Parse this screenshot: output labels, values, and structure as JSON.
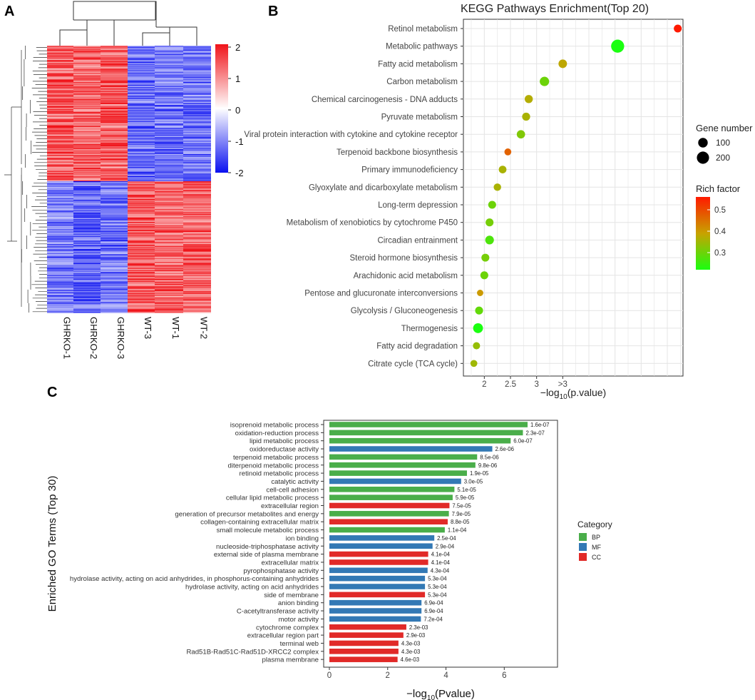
{
  "panel_labels": {
    "a": "A",
    "b": "B",
    "c": "C"
  },
  "chart_data": [
    {
      "type": "heatmap",
      "panel": "A",
      "title": "",
      "samples": [
        "GHRKO-1",
        "GHRKO-2",
        "GHRKO-3",
        "WT-3",
        "WT-1",
        "WT-2"
      ],
      "colorbar": {
        "min": -2,
        "max": 2,
        "ticks": [
          "2",
          "1",
          "0",
          "-1",
          "-2"
        ],
        "colors": [
          "#0a10f0",
          "#ffffff",
          "#f0141a"
        ]
      },
      "row_blocks": [
        {
          "rows": 160,
          "values": [
            1.0,
            0.9,
            1.0,
            -0.9,
            -0.8,
            -0.8
          ]
        },
        {
          "rows": 155,
          "values": [
            -0.8,
            -0.9,
            -0.8,
            1.0,
            0.9,
            0.9
          ]
        }
      ]
    },
    {
      "type": "scatter",
      "panel": "B",
      "title": "KEGG Pathways Enrichment(Top 20)",
      "xlabel": "−log10(p.value)",
      "xlabel_main": "−log",
      "xlabel_sub": "10",
      "xlabel_tail": "(p.value)",
      "xlim": [
        1.6,
        5.8
      ],
      "xticks": [
        {
          "value": 2,
          "label": "2"
        },
        {
          "value": 2.5,
          "label": "2.5"
        },
        {
          "value": 3,
          "label": "3"
        },
        {
          "value": 3.5,
          "label": ">3"
        }
      ],
      "size_legend": {
        "title": "Gene number",
        "entries": [
          {
            "value": 100,
            "label": "100"
          },
          {
            "value": 200,
            "label": "200"
          }
        ]
      },
      "color_legend": {
        "title": "Rich factor",
        "ticks": [
          "0.5",
          "0.4",
          "0.3"
        ],
        "range": [
          0.22,
          0.56
        ]
      },
      "points": [
        {
          "term": "Retinol metabolism",
          "x": 5.7,
          "genes": 55,
          "rich": 0.56
        },
        {
          "term": "Metabolic pathways",
          "x": 4.55,
          "genes": 240,
          "rich": 0.22
        },
        {
          "term": "Fatty acid metabolism",
          "x": 3.5,
          "genes": 70,
          "rich": 0.38
        },
        {
          "term": "Carbon metabolism",
          "x": 3.15,
          "genes": 95,
          "rich": 0.3
        },
        {
          "term": "Chemical carcinogenesis - DNA adducts",
          "x": 2.85,
          "genes": 60,
          "rich": 0.37
        },
        {
          "term": "Pyruvate metabolism",
          "x": 2.8,
          "genes": 58,
          "rich": 0.36
        },
        {
          "term": "Viral protein interaction with cytokine and cytokine receptor",
          "x": 2.7,
          "genes": 65,
          "rich": 0.32
        },
        {
          "term": "Terpenoid backbone biosynthesis",
          "x": 2.45,
          "genes": 35,
          "rich": 0.47
        },
        {
          "term": "Primary immunodeficiency",
          "x": 2.35,
          "genes": 50,
          "rich": 0.36
        },
        {
          "term": "Glyoxylate and dicarboxylate metabolism",
          "x": 2.25,
          "genes": 45,
          "rich": 0.36
        },
        {
          "term": "Long-term depression",
          "x": 2.15,
          "genes": 55,
          "rich": 0.3
        },
        {
          "term": "Metabolism of xenobiotics by cytochrome P450",
          "x": 2.1,
          "genes": 55,
          "rich": 0.31
        },
        {
          "term": "Circadian entrainment",
          "x": 2.1,
          "genes": 75,
          "rich": 0.27
        },
        {
          "term": "Steroid hormone biosynthesis",
          "x": 2.02,
          "genes": 55,
          "rich": 0.31
        },
        {
          "term": "Arachidonic acid metabolism",
          "x": 2.0,
          "genes": 55,
          "rich": 0.3
        },
        {
          "term": "Pentose and glucuronate interconversions",
          "x": 1.92,
          "genes": 25,
          "rich": 0.4
        },
        {
          "term": "Glycolysis / Gluconeogenesis",
          "x": 1.9,
          "genes": 55,
          "rich": 0.29
        },
        {
          "term": "Thermogenesis",
          "x": 1.88,
          "genes": 110,
          "rich": 0.22
        },
        {
          "term": "Fatty acid degradation",
          "x": 1.85,
          "genes": 40,
          "rich": 0.34
        },
        {
          "term": "Citrate cycle (TCA cycle)",
          "x": 1.8,
          "genes": 35,
          "rich": 0.35
        }
      ]
    },
    {
      "type": "bar",
      "panel": "C",
      "orientation": "horizontal",
      "xlabel": "−log10(Pvalue)",
      "xlabel_main": "−log",
      "xlabel_sub": "10",
      "xlabel_tail": "(Pvalue)",
      "ylabel": "Enriched GO Terms (Top 30)",
      "xlim": [
        0,
        7.9
      ],
      "xticks": [
        0,
        2,
        4,
        6
      ],
      "legend": {
        "title": "Category",
        "entries": [
          {
            "name": "BP",
            "color": "#4aae4a"
          },
          {
            "name": "MF",
            "color": "#3379b5"
          },
          {
            "name": "CC",
            "color": "#e12a28"
          }
        ]
      },
      "bars": [
        {
          "term": "isoprenoid metabolic process",
          "category": "BP",
          "value": 6.8,
          "label": "1.6e-07"
        },
        {
          "term": "oxidation-reduction process",
          "category": "BP",
          "value": 6.64,
          "label": "2.3e-07"
        },
        {
          "term": "lipid metabolic process",
          "category": "BP",
          "value": 6.22,
          "label": "6.0e-07"
        },
        {
          "term": "oxidoreductase activity",
          "category": "MF",
          "value": 5.59,
          "label": "2.6e-06"
        },
        {
          "term": "terpenoid metabolic process",
          "category": "BP",
          "value": 5.07,
          "label": "8.5e-06"
        },
        {
          "term": "diterpenoid metabolic process",
          "category": "BP",
          "value": 5.01,
          "label": "9.8e-06"
        },
        {
          "term": "retinoid metabolic process",
          "category": "BP",
          "value": 4.72,
          "label": "1.9e-05"
        },
        {
          "term": "catalytic activity",
          "category": "MF",
          "value": 4.52,
          "label": "3.0e-05"
        },
        {
          "term": "cell-cell adhesion",
          "category": "BP",
          "value": 4.29,
          "label": "5.1e-05"
        },
        {
          "term": "cellular lipid metabolic process",
          "category": "BP",
          "value": 4.23,
          "label": "5.9e-05"
        },
        {
          "term": "extracellular region",
          "category": "CC",
          "value": 4.12,
          "label": "7.5e-05"
        },
        {
          "term": "generation of precursor metabolites and energy",
          "category": "BP",
          "value": 4.1,
          "label": "7.9e-05"
        },
        {
          "term": "collagen-containing extracellular matrix",
          "category": "CC",
          "value": 4.06,
          "label": "8.8e-05"
        },
        {
          "term": "small molecule metabolic process",
          "category": "BP",
          "value": 3.96,
          "label": "1.1e-04"
        },
        {
          "term": "ion binding",
          "category": "MF",
          "value": 3.6,
          "label": "2.5e-04"
        },
        {
          "term": "nucleoside-triphosphatase activity",
          "category": "MF",
          "value": 3.54,
          "label": "2.9e-04"
        },
        {
          "term": "external side of plasma membrane",
          "category": "CC",
          "value": 3.39,
          "label": "4.1e-04"
        },
        {
          "term": "extracellular matrix",
          "category": "CC",
          "value": 3.39,
          "label": "4.1e-04"
        },
        {
          "term": "pyrophosphatase activity",
          "category": "MF",
          "value": 3.37,
          "label": "4.3e-04"
        },
        {
          "term": "hydrolase activity, acting on acid anhydrides, in phosphorus-containing anhydrides",
          "category": "MF",
          "value": 3.28,
          "label": "5.3e-04"
        },
        {
          "term": "hydrolase activity, acting on acid anhydrides",
          "category": "MF",
          "value": 3.28,
          "label": "5.3e-04"
        },
        {
          "term": "side of membrane",
          "category": "CC",
          "value": 3.28,
          "label": "5.3e-04"
        },
        {
          "term": "anion binding",
          "category": "MF",
          "value": 3.16,
          "label": "6.9e-04"
        },
        {
          "term": "C-acetyltransferase activity",
          "category": "MF",
          "value": 3.16,
          "label": "6.9e-04"
        },
        {
          "term": "motor activity",
          "category": "MF",
          "value": 3.14,
          "label": "7.2e-04"
        },
        {
          "term": "cytochrome complex",
          "category": "CC",
          "value": 2.64,
          "label": "2.3e-03"
        },
        {
          "term": "extracellular region part",
          "category": "CC",
          "value": 2.54,
          "label": "2.9e-03"
        },
        {
          "term": "terminal web",
          "category": "CC",
          "value": 2.37,
          "label": "4.3e-03"
        },
        {
          "term": "Rad51B-Rad51C-Rad51D-XRCC2 complex",
          "category": "CC",
          "value": 2.37,
          "label": "4.3e-03"
        },
        {
          "term": "plasma membrane",
          "category": "CC",
          "value": 2.34,
          "label": "4.6e-03"
        }
      ]
    }
  ]
}
